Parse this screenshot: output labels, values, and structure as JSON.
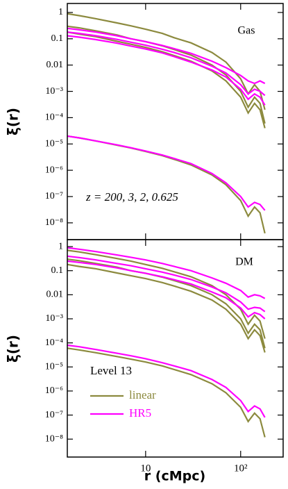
{
  "chart_data": [
    {
      "type": "line",
      "ylabel": "ξ(r)",
      "label": "Gas",
      "note": "z = 200, 3, 2, 0.625",
      "xlog": true,
      "ylog": true,
      "xlim": [
        1.5,
        280
      ],
      "ylim": [
        2.3e-09,
        2.2
      ],
      "yticks": [
        1,
        0.1,
        0.01,
        {
          "value": 0.001,
          "label": "10⁻³"
        },
        {
          "value": 0.0001,
          "label": "10⁻⁴"
        },
        {
          "value": 1e-05,
          "label": "10⁻⁵"
        },
        {
          "value": 1e-06,
          "label": "10⁻⁶"
        },
        {
          "value": 1e-07,
          "label": "10⁻⁷"
        },
        {
          "value": 1e-08,
          "label": "10⁻⁸"
        }
      ],
      "x": [
        1.5,
        2,
        3,
        5,
        7,
        10,
        15,
        20,
        30,
        50,
        70,
        100,
        120,
        140,
        160,
        180
      ],
      "series": [
        {
          "color": "#8c8a3e",
          "values": [
            0.9,
            0.76,
            0.58,
            0.4,
            0.31,
            0.23,
            0.16,
            0.11,
            0.07,
            0.03,
            0.013,
            0.003,
            0.0008,
            0.0018,
            0.001,
            0.0002
          ]
        },
        {
          "color": "#8c8a3e",
          "values": [
            0.3,
            0.26,
            0.2,
            0.14,
            0.1,
            0.078,
            0.054,
            0.039,
            0.024,
            0.01,
            0.0042,
            0.001,
            0.00025,
            0.0006,
            0.00035,
            6e-05
          ]
        },
        {
          "color": "#8c8a3e",
          "values": [
            0.18,
            0.15,
            0.12,
            0.08,
            0.062,
            0.047,
            0.032,
            0.023,
            0.014,
            0.006,
            0.0025,
            0.0006,
            0.00015,
            0.00035,
            0.0002,
            4e-05
          ]
        },
        {
          "color": "#8c8a3e",
          "values": [
            2e-05,
            1.7e-05,
            1.3e-05,
            9e-06,
            7e-06,
            5.2e-06,
            3.6e-06,
            2.6e-06,
            1.6e-06,
            6.6e-07,
            2.8e-07,
            7e-08,
            1.8e-08,
            4e-08,
            2.4e-08,
            4e-09
          ]
        },
        {
          "color": "#ff00ff",
          "values": [
            0.25,
            0.22,
            0.18,
            0.13,
            0.1,
            0.078,
            0.056,
            0.042,
            0.028,
            0.014,
            0.008,
            0.004,
            0.0025,
            0.002,
            0.0025,
            0.002
          ]
        },
        {
          "color": "#ff00ff",
          "values": [
            0.18,
            0.16,
            0.13,
            0.095,
            0.074,
            0.057,
            0.04,
            0.03,
            0.019,
            0.009,
            0.005,
            0.0018,
            0.0008,
            0.0012,
            0.001,
            0.0007
          ]
        },
        {
          "color": "#ff00ff",
          "values": [
            0.13,
            0.115,
            0.093,
            0.068,
            0.053,
            0.041,
            0.029,
            0.021,
            0.013,
            0.0065,
            0.0035,
            0.0012,
            0.0005,
            0.0008,
            0.0006,
            0.0003
          ]
        },
        {
          "color": "#ff00ff",
          "values": [
            2e-05,
            1.7e-05,
            1.3e-05,
            9.2e-06,
            7.2e-06,
            5.4e-06,
            3.8e-06,
            2.8e-06,
            1.8e-06,
            7.5e-07,
            3.3e-07,
            1e-07,
            4e-08,
            6e-08,
            5e-08,
            3e-08
          ]
        }
      ]
    },
    {
      "type": "line",
      "ylabel": "ξ(r)",
      "xlabel": "r (cMpc)",
      "label": "DM",
      "note": "Level 13",
      "xlog": true,
      "ylog": true,
      "xlim": [
        1.5,
        280
      ],
      "ylim": [
        1.8e-09,
        1.95
      ],
      "xticks": [
        10,
        {
          "value": 100,
          "label": "10²"
        }
      ],
      "yticks": [
        1,
        0.1,
        0.01,
        {
          "value": 0.001,
          "label": "10⁻³"
        },
        {
          "value": 0.0001,
          "label": "10⁻⁴"
        },
        {
          "value": 1e-05,
          "label": "10⁻⁵"
        },
        {
          "value": 1e-06,
          "label": "10⁻⁶"
        },
        {
          "value": 1e-07,
          "label": "10⁻⁷"
        },
        {
          "value": 1e-08,
          "label": "10⁻⁸"
        }
      ],
      "x": [
        1.5,
        2,
        3,
        5,
        7,
        10,
        15,
        20,
        30,
        50,
        70,
        100,
        120,
        140,
        160,
        180
      ],
      "series": [
        {
          "name": "linear",
          "color": "#8c8a3e",
          "values": [
            0.7,
            0.6,
            0.46,
            0.32,
            0.25,
            0.18,
            0.125,
            0.09,
            0.056,
            0.024,
            0.01,
            0.0025,
            0.0006,
            0.0014,
            0.0008,
            0.00015
          ]
        },
        {
          "color": "#8c8a3e",
          "values": [
            0.3,
            0.26,
            0.2,
            0.14,
            0.1,
            0.078,
            0.054,
            0.039,
            0.024,
            0.01,
            0.0042,
            0.001,
            0.00025,
            0.0006,
            0.00035,
            6e-05
          ]
        },
        {
          "color": "#8c8a3e",
          "values": [
            0.18,
            0.15,
            0.12,
            0.08,
            0.062,
            0.047,
            0.032,
            0.023,
            0.014,
            0.006,
            0.0025,
            0.0006,
            0.00015,
            0.00035,
            0.0002,
            4e-05
          ]
        },
        {
          "color": "#8c8a3e",
          "values": [
            6e-05,
            5.1e-05,
            3.9e-05,
            2.7e-05,
            2.1e-05,
            1.6e-05,
            1.1e-05,
            7.8e-06,
            4.8e-06,
            2e-06,
            8.4e-07,
            2.1e-07,
            5.4e-08,
            1.2e-07,
            7e-08,
            1.2e-08
          ]
        },
        {
          "name": "HR5",
          "color": "#ff00ff",
          "values": [
            0.9,
            0.78,
            0.62,
            0.45,
            0.36,
            0.28,
            0.2,
            0.15,
            0.1,
            0.05,
            0.03,
            0.015,
            0.008,
            0.01,
            0.009,
            0.007
          ]
        },
        {
          "color": "#ff00ff",
          "values": [
            0.4,
            0.35,
            0.28,
            0.2,
            0.16,
            0.12,
            0.087,
            0.066,
            0.043,
            0.021,
            0.012,
            0.005,
            0.0025,
            0.003,
            0.0028,
            0.002
          ]
        },
        {
          "color": "#ff00ff",
          "values": [
            0.25,
            0.22,
            0.18,
            0.13,
            0.1,
            0.078,
            0.056,
            0.042,
            0.028,
            0.013,
            0.0075,
            0.0028,
            0.0012,
            0.0018,
            0.0015,
            0.001
          ]
        },
        {
          "color": "#ff00ff",
          "values": [
            8e-05,
            6.9e-05,
            5.3e-05,
            3.7e-05,
            2.9e-05,
            2.2e-05,
            1.5e-05,
            1.1e-05,
            7e-06,
            3e-06,
            1.4e-06,
            4e-07,
            1.4e-07,
            2.4e-07,
            1.8e-07,
            8e-08
          ]
        }
      ]
    }
  ]
}
